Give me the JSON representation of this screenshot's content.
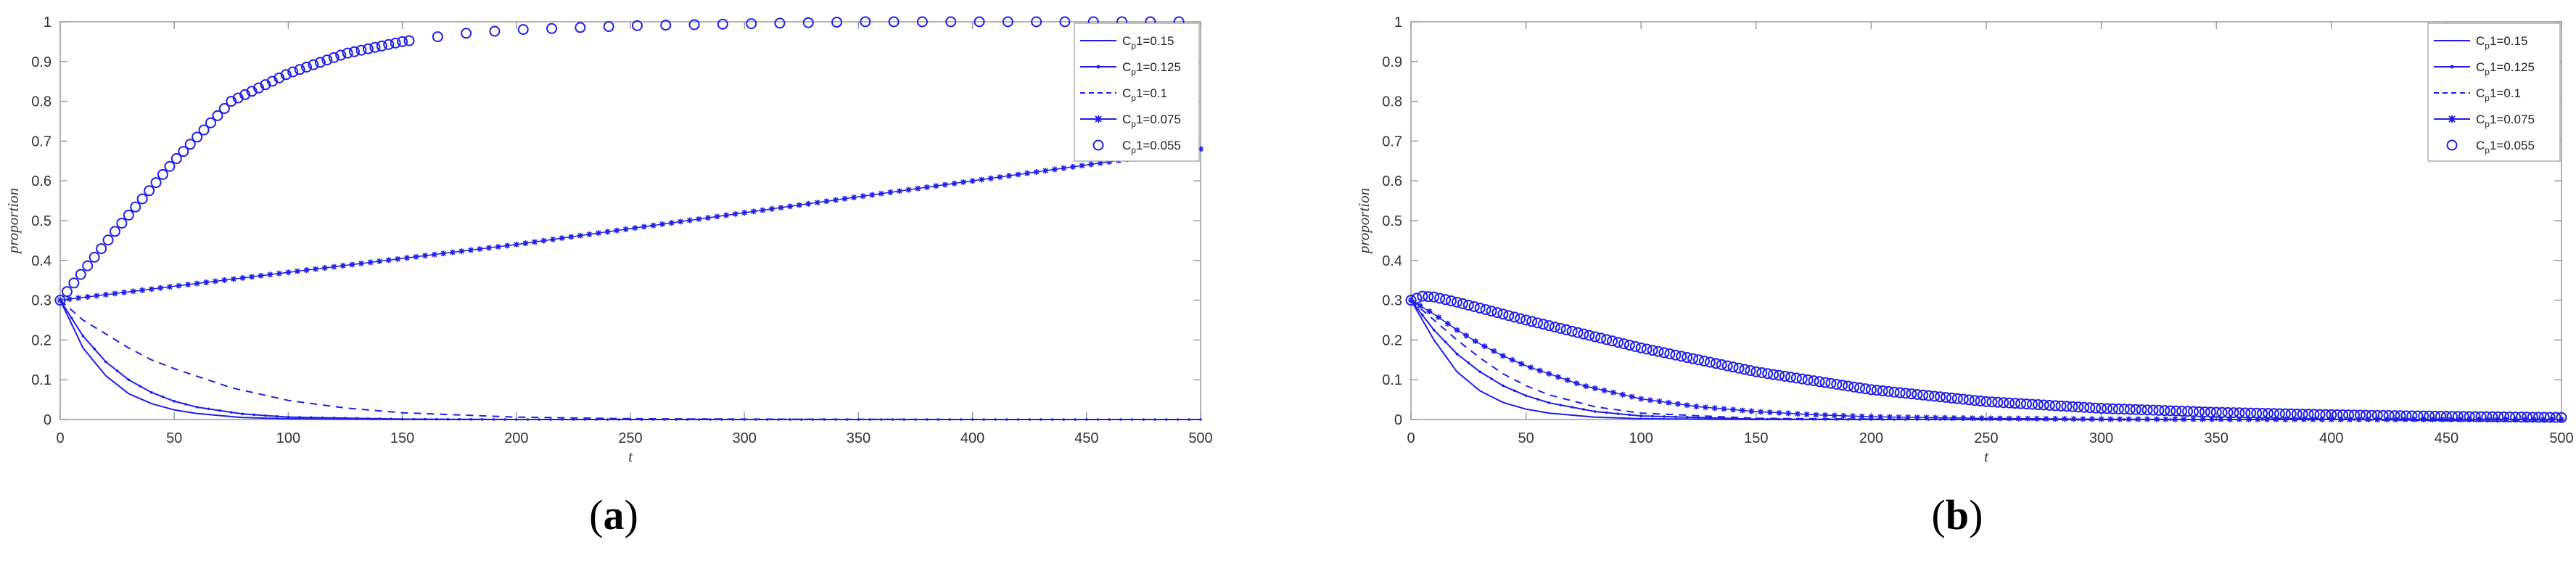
{
  "panel_labels": [
    {
      "open": "(",
      "letter": "a",
      "close": ")"
    },
    {
      "open": "(",
      "letter": "b",
      "close": ")"
    }
  ],
  "chart_data": [
    {
      "type": "line",
      "panel": "a",
      "xlabel": "t",
      "ylabel": "proportion",
      "xlim": [
        0,
        500
      ],
      "ylim": [
        0,
        1
      ],
      "xticks": [
        0,
        50,
        100,
        150,
        200,
        250,
        300,
        350,
        400,
        450,
        500
      ],
      "yticks": [
        0,
        0.1,
        0.2,
        0.3,
        0.4,
        0.5,
        0.6,
        0.7,
        0.8,
        0.9,
        1
      ],
      "grid": false,
      "legend_position": "top-right",
      "color": "#1f1fe6",
      "series": [
        {
          "name": "C_p1=0.15",
          "label_parts": [
            "C",
            "p",
            "1=0.15"
          ],
          "style": "solid",
          "x": [
            0,
            10,
            20,
            30,
            40,
            50,
            60,
            80,
            100,
            150,
            200,
            300,
            400,
            500
          ],
          "values": [
            0.3,
            0.18,
            0.11,
            0.065,
            0.04,
            0.024,
            0.015,
            0.005,
            0.002,
            0,
            0,
            0,
            0,
            0
          ]
        },
        {
          "name": "C_p1=0.125",
          "label_parts": [
            "C",
            "p",
            "1=0.125"
          ],
          "style": "solid-dot",
          "x": [
            0,
            10,
            20,
            30,
            40,
            50,
            60,
            80,
            100,
            150,
            200,
            300,
            400,
            500
          ],
          "values": [
            0.3,
            0.21,
            0.145,
            0.1,
            0.068,
            0.046,
            0.031,
            0.014,
            0.006,
            0.001,
            0,
            0,
            0,
            0
          ]
        },
        {
          "name": "C_p1=0.1",
          "label_parts": [
            "C",
            "p",
            "1=0.1"
          ],
          "style": "dashed",
          "x": [
            0,
            10,
            20,
            30,
            40,
            50,
            75,
            100,
            125,
            150,
            200,
            250,
            300,
            400,
            500
          ],
          "values": [
            0.3,
            0.25,
            0.215,
            0.18,
            0.15,
            0.128,
            0.08,
            0.048,
            0.029,
            0.017,
            0.006,
            0.002,
            0.001,
            0,
            0
          ]
        },
        {
          "name": "C_p1=0.075",
          "label_parts": [
            "C",
            "p",
            "1=0.075"
          ],
          "style": "star",
          "x": [
            0,
            50,
            100,
            150,
            200,
            250,
            300,
            350,
            400,
            450,
            500
          ],
          "values": [
            0.3,
            0.335,
            0.37,
            0.405,
            0.44,
            0.48,
            0.52,
            0.56,
            0.6,
            0.64,
            0.68
          ]
        },
        {
          "name": "C_p1=0.055",
          "label_parts": [
            "C",
            "p",
            "1=0.055"
          ],
          "style": "circle",
          "x": [
            0,
            25,
            50,
            75,
            100,
            125,
            150,
            175,
            200,
            250,
            300,
            350,
            400,
            450,
            500
          ],
          "values": [
            0.3,
            0.48,
            0.65,
            0.8,
            0.87,
            0.92,
            0.95,
            0.97,
            0.98,
            0.99,
            0.995,
            1,
            1,
            1,
            1
          ]
        }
      ]
    },
    {
      "type": "line",
      "panel": "b",
      "xlabel": "t",
      "ylabel": "proportion",
      "xlim": [
        0,
        500
      ],
      "ylim": [
        0,
        1
      ],
      "xticks": [
        0,
        50,
        100,
        150,
        200,
        250,
        300,
        350,
        400,
        450,
        500
      ],
      "yticks": [
        0,
        0.1,
        0.2,
        0.3,
        0.4,
        0.5,
        0.6,
        0.7,
        0.8,
        0.9,
        1
      ],
      "grid": false,
      "legend_position": "top-right",
      "color": "#1f1fe6",
      "series": [
        {
          "name": "C_p1=0.15",
          "label_parts": [
            "C",
            "p",
            "1=0.15"
          ],
          "style": "solid",
          "x": [
            0,
            10,
            20,
            30,
            40,
            50,
            60,
            80,
            100,
            150,
            200,
            300,
            400,
            500
          ],
          "values": [
            0.3,
            0.2,
            0.12,
            0.072,
            0.043,
            0.026,
            0.016,
            0.006,
            0.002,
            0,
            0,
            0,
            0,
            0
          ]
        },
        {
          "name": "C_p1=0.125",
          "label_parts": [
            "C",
            "p",
            "1=0.125"
          ],
          "style": "solid-dot",
          "x": [
            0,
            10,
            20,
            30,
            40,
            50,
            60,
            80,
            100,
            150,
            200,
            300,
            400,
            500
          ],
          "values": [
            0.3,
            0.225,
            0.165,
            0.12,
            0.085,
            0.06,
            0.042,
            0.02,
            0.009,
            0.001,
            0,
            0,
            0,
            0
          ]
        },
        {
          "name": "C_p1=0.1",
          "label_parts": [
            "C",
            "p",
            "1=0.1"
          ],
          "style": "dashed",
          "x": [
            0,
            10,
            20,
            30,
            40,
            50,
            60,
            80,
            100,
            150,
            200,
            300,
            400,
            500
          ],
          "values": [
            0.3,
            0.25,
            0.2,
            0.155,
            0.115,
            0.085,
            0.062,
            0.032,
            0.016,
            0.003,
            0.001,
            0,
            0,
            0
          ]
        },
        {
          "name": "C_p1=0.075",
          "label_parts": [
            "C",
            "p",
            "1=0.075"
          ],
          "style": "star",
          "x": [
            0,
            10,
            20,
            30,
            40,
            50,
            75,
            100,
            125,
            150,
            175,
            200,
            250,
            300,
            400,
            500
          ],
          "values": [
            0.3,
            0.265,
            0.225,
            0.19,
            0.16,
            0.135,
            0.085,
            0.052,
            0.032,
            0.02,
            0.012,
            0.007,
            0.003,
            0.001,
            0,
            0
          ]
        },
        {
          "name": "C_p1=0.055",
          "label_parts": [
            "C",
            "p",
            "1=0.055"
          ],
          "style": "circle",
          "x": [
            0,
            5,
            10,
            20,
            30,
            50,
            75,
            100,
            150,
            200,
            250,
            300,
            350,
            400,
            450,
            500
          ],
          "values": [
            0.3,
            0.31,
            0.308,
            0.295,
            0.28,
            0.25,
            0.215,
            0.18,
            0.12,
            0.075,
            0.045,
            0.028,
            0.018,
            0.012,
            0.008,
            0.005
          ]
        }
      ]
    }
  ]
}
